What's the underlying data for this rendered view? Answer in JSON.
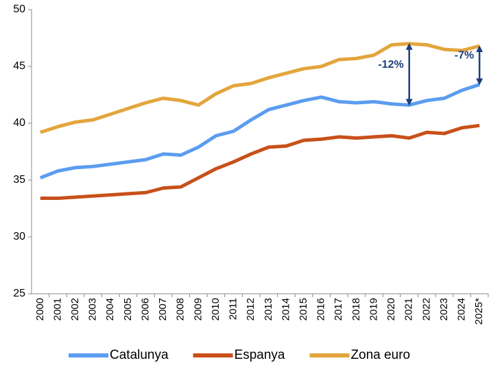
{
  "chart_data": {
    "type": "line",
    "categories": [
      "2000",
      "2001",
      "2002",
      "2003",
      "2004",
      "2005",
      "2006",
      "2007",
      "2008",
      "2009",
      "2010",
      "2011",
      "2012",
      "2013",
      "2014",
      "2015",
      "2016",
      "2017",
      "2018",
      "2019",
      "2020",
      "2021",
      "2022",
      "2023",
      "2024",
      "2025*"
    ],
    "series": [
      {
        "name": "Catalunya",
        "color": "#5b9cf0",
        "values": [
          35.2,
          35.8,
          36.1,
          36.2,
          36.4,
          36.6,
          36.8,
          37.3,
          37.2,
          37.9,
          38.9,
          39.3,
          40.3,
          41.2,
          41.6,
          42.0,
          42.3,
          41.9,
          41.8,
          41.9,
          41.7,
          41.6,
          42.0,
          42.2,
          42.9,
          43.4
        ]
      },
      {
        "name": "Espanya",
        "color": "#c8501a",
        "values": [
          33.4,
          33.4,
          33.5,
          33.6,
          33.7,
          33.8,
          33.9,
          34.3,
          34.4,
          35.2,
          36.0,
          36.6,
          37.3,
          37.9,
          38.0,
          38.5,
          38.6,
          38.8,
          38.7,
          38.8,
          38.9,
          38.7,
          39.2,
          39.1,
          39.6,
          39.8
        ]
      },
      {
        "name": "Zona euro",
        "color": "#e3a53c",
        "values": [
          39.2,
          39.7,
          40.1,
          40.3,
          40.8,
          41.3,
          41.8,
          42.2,
          42.0,
          41.6,
          42.6,
          43.3,
          43.5,
          44.0,
          44.4,
          44.8,
          45.0,
          45.6,
          45.7,
          46.0,
          46.9,
          47.0,
          46.9,
          46.5,
          46.4,
          46.8
        ]
      }
    ],
    "annotations": [
      "-12%",
      "-7%"
    ],
    "ylim": [
      25,
      50
    ],
    "yticks": [
      25,
      30,
      35,
      40,
      45,
      50
    ],
    "legend": "bottom"
  }
}
